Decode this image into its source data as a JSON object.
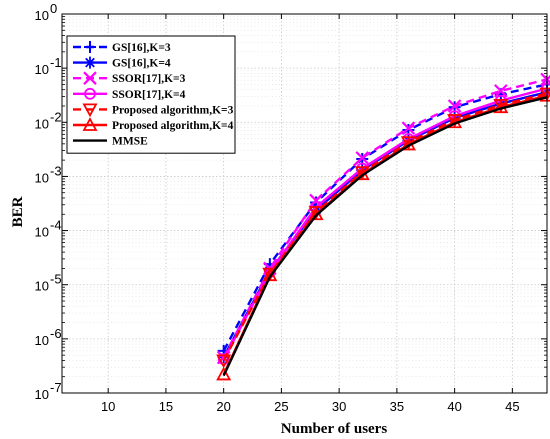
{
  "chart_data": {
    "type": "line",
    "title": "",
    "xlabel": "Number of users",
    "ylabel": "BER",
    "xlim": [
      6,
      48
    ],
    "ylim_exponent": [
      -7,
      0
    ],
    "yscale": "log",
    "grid": true,
    "legend_position": "top-left",
    "x_ticks": [
      "10",
      "15",
      "20",
      "25",
      "30",
      "35",
      "40",
      "45"
    ],
    "y_ticks": [
      {
        "base": "10",
        "exp": "0"
      },
      {
        "base": "10",
        "exp": "-1"
      },
      {
        "base": "10",
        "exp": "-2"
      },
      {
        "base": "10",
        "exp": "-3"
      },
      {
        "base": "10",
        "exp": "-4"
      },
      {
        "base": "10",
        "exp": "-5"
      },
      {
        "base": "10",
        "exp": "-6"
      },
      {
        "base": "10",
        "exp": "-7"
      }
    ],
    "x": [
      20,
      24,
      28,
      32,
      36,
      40,
      44,
      48
    ],
    "series": [
      {
        "name": "GS[16],K=3",
        "color": "#0000ff",
        "dash": "dashed",
        "marker": "plus",
        "values": [
          6e-07,
          2.4e-05,
          0.00033,
          0.0021,
          0.0072,
          0.019,
          0.033,
          0.05
        ]
      },
      {
        "name": "GS[16],K=4",
        "color": "#0000ff",
        "dash": "solid",
        "marker": "asterisk",
        "values": [
          4.6e-07,
          1.8e-05,
          0.00024,
          0.0013,
          0.0046,
          0.012,
          0.022,
          0.036
        ]
      },
      {
        "name": "SSOR[17],K=3",
        "color": "#ff00ff",
        "dash": "dashed",
        "marker": "x",
        "values": [
          4.5e-07,
          2e-05,
          0.00036,
          0.0022,
          0.0078,
          0.02,
          0.038,
          0.062
        ]
      },
      {
        "name": "SSOR[17],K=4",
        "color": "#ff00ff",
        "dash": "solid",
        "marker": "circle",
        "values": [
          4.2e-07,
          1.7e-05,
          0.00027,
          0.0014,
          0.0049,
          0.013,
          0.025,
          0.042
        ]
      },
      {
        "name": "Proposed algorithm,K=3",
        "color": "#ff0000",
        "dash": "dashed",
        "marker": "triangle-down",
        "values": [
          4e-07,
          1.6e-05,
          0.00022,
          0.0012,
          0.0043,
          0.011,
          0.021,
          0.034
        ]
      },
      {
        "name": "Proposed algorithm,K=4",
        "color": "#ff0000",
        "dash": "solid",
        "marker": "triangle-up",
        "values": [
          2.2e-07,
          1.5e-05,
          0.0002,
          0.0011,
          0.0039,
          0.01,
          0.019,
          0.031
        ]
      },
      {
        "name": "MMSE",
        "color": "#000000",
        "dash": "solid",
        "marker": "none",
        "values": [
          2.1e-07,
          1.4e-05,
          0.00019,
          0.00105,
          0.0037,
          0.0095,
          0.018,
          0.029
        ]
      }
    ]
  }
}
